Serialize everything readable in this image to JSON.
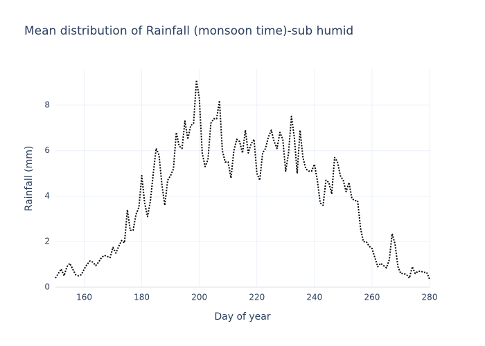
{
  "chart_data": {
    "type": "line",
    "title": "Mean distribution of Rainfall (monsoon time)-sub humid",
    "xlabel": "Day of year",
    "ylabel": "Rainfall (mm)",
    "x": [
      150,
      151,
      152,
      153,
      154,
      155,
      156,
      157,
      158,
      159,
      160,
      161,
      162,
      163,
      164,
      165,
      166,
      167,
      168,
      169,
      170,
      171,
      172,
      173,
      174,
      175,
      176,
      177,
      178,
      179,
      180,
      181,
      182,
      183,
      184,
      185,
      186,
      187,
      188,
      189,
      190,
      191,
      192,
      193,
      194,
      195,
      196,
      197,
      198,
      199,
      200,
      201,
      202,
      203,
      204,
      205,
      206,
      207,
      208,
      209,
      210,
      211,
      212,
      213,
      214,
      215,
      216,
      217,
      218,
      219,
      220,
      221,
      222,
      223,
      224,
      225,
      226,
      227,
      228,
      229,
      230,
      231,
      232,
      233,
      234,
      235,
      236,
      237,
      238,
      239,
      240,
      241,
      242,
      243,
      244,
      245,
      246,
      247,
      248,
      249,
      250,
      251,
      252,
      253,
      254,
      255,
      256,
      257,
      258,
      259,
      260,
      261,
      262,
      263,
      264,
      265,
      266,
      267,
      268,
      269,
      270,
      271,
      272,
      273,
      274,
      275,
      276,
      277,
      278,
      279,
      280
    ],
    "series": [
      {
        "name": "Rainfall",
        "color": "#000000",
        "dash": "dot",
        "values": [
          0.4,
          0.6,
          0.8,
          0.5,
          0.9,
          1.05,
          0.8,
          0.55,
          0.5,
          0.55,
          0.8,
          1.0,
          1.15,
          1.1,
          0.95,
          1.1,
          1.3,
          1.4,
          1.35,
          1.3,
          1.75,
          1.5,
          1.8,
          2.05,
          1.95,
          3.4,
          2.5,
          2.5,
          3.2,
          3.5,
          4.9,
          3.7,
          3.1,
          3.8,
          5.0,
          6.1,
          5.8,
          4.5,
          3.6,
          4.7,
          4.9,
          5.2,
          6.8,
          6.2,
          6.1,
          7.3,
          6.5,
          7.1,
          7.2,
          9.1,
          8.3,
          5.9,
          5.3,
          5.6,
          7.2,
          7.4,
          7.4,
          8.2,
          6.0,
          5.5,
          5.5,
          4.8,
          6.0,
          6.5,
          6.4,
          5.9,
          6.9,
          5.9,
          6.3,
          6.5,
          5.0,
          4.7,
          5.9,
          6.1,
          6.6,
          6.9,
          6.4,
          6.1,
          6.8,
          6.5,
          5.1,
          5.9,
          7.5,
          6.6,
          5.0,
          6.9,
          5.7,
          5.2,
          5.1,
          5.1,
          5.4,
          4.7,
          3.7,
          3.6,
          4.7,
          4.6,
          4.1,
          5.7,
          5.5,
          4.9,
          4.7,
          4.2,
          4.6,
          3.9,
          3.8,
          3.8,
          2.6,
          2.0,
          2.0,
          1.8,
          1.7,
          1.3,
          0.9,
          1.05,
          0.95,
          0.85,
          1.2,
          2.35,
          1.9,
          0.9,
          0.6,
          0.6,
          0.55,
          0.4,
          0.9,
          0.6,
          0.7,
          0.7,
          0.65,
          0.65,
          0.35
        ]
      }
    ],
    "xlim": [
      150,
      280
    ],
    "ylim": [
      0,
      9.58
    ],
    "xticks": [
      160,
      180,
      200,
      220,
      240,
      260,
      280
    ],
    "yticks": [
      0,
      2,
      4,
      6,
      8
    ],
    "grid": true
  }
}
